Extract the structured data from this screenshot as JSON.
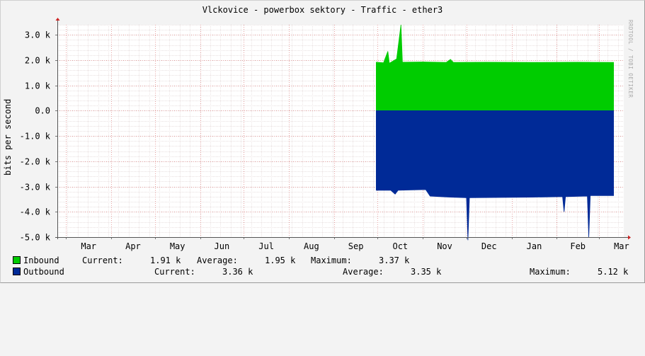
{
  "chart_data": {
    "type": "area",
    "title": "Vlckovice - powerbox sektory - Traffic - ether3",
    "ylabel": "bits per second",
    "watermark": "RRDTOOL / TOBI OETIKER",
    "ylim": [
      -5000,
      3400
    ],
    "yticks": [
      {
        "value": 3000,
        "label": "3.0 k"
      },
      {
        "value": 2000,
        "label": "2.0 k"
      },
      {
        "value": 1000,
        "label": "1.0 k"
      },
      {
        "value": 0,
        "label": "0.0"
      },
      {
        "value": -1000,
        "label": "-1.0 k"
      },
      {
        "value": -2000,
        "label": "-2.0 k"
      },
      {
        "value": -3000,
        "label": "-3.0 k"
      },
      {
        "value": -4000,
        "label": "-4.0 k"
      },
      {
        "value": -5000,
        "label": "-5.0 k"
      }
    ],
    "xlim": [
      "2019-02-23",
      "2020-03-18"
    ],
    "xticks": [
      {
        "date": "2019-03-01",
        "label": "Mar"
      },
      {
        "date": "2019-04-01",
        "label": "Apr"
      },
      {
        "date": "2019-05-01",
        "label": "May"
      },
      {
        "date": "2019-06-01",
        "label": "Jun"
      },
      {
        "date": "2019-07-01",
        "label": "Jul"
      },
      {
        "date": "2019-08-01",
        "label": "Aug"
      },
      {
        "date": "2019-09-01",
        "label": "Sep"
      },
      {
        "date": "2019-10-01",
        "label": "Oct"
      },
      {
        "date": "2019-11-01",
        "label": "Nov"
      },
      {
        "date": "2019-12-01",
        "label": "Dec"
      },
      {
        "date": "2020-01-01",
        "label": "Jan"
      },
      {
        "date": "2020-02-01",
        "label": "Feb"
      },
      {
        "date": "2020-03-01",
        "label": "Mar"
      }
    ],
    "grid": true,
    "legend_placement": "bottom",
    "series": [
      {
        "name": "Inbound",
        "color": "#00cc00",
        "points": [
          {
            "x": "2019-09-30",
            "y": 1920
          },
          {
            "x": "2019-10-05",
            "y": 1900
          },
          {
            "x": "2019-10-08",
            "y": 2350
          },
          {
            "x": "2019-10-09",
            "y": 1880
          },
          {
            "x": "2019-10-14",
            "y": 2050
          },
          {
            "x": "2019-10-17",
            "y": 3400
          },
          {
            "x": "2019-10-18",
            "y": 1920
          },
          {
            "x": "2019-11-01",
            "y": 1930
          },
          {
            "x": "2019-11-17",
            "y": 1910
          },
          {
            "x": "2019-11-20",
            "y": 2030
          },
          {
            "x": "2019-11-22",
            "y": 1910
          },
          {
            "x": "2019-12-15",
            "y": 1920
          },
          {
            "x": "2020-01-15",
            "y": 1910
          },
          {
            "x": "2020-02-15",
            "y": 1920
          },
          {
            "x": "2020-03-11",
            "y": 1910
          }
        ],
        "current": "1.91 k",
        "average": "1.95 k",
        "maximum": "3.37 k"
      },
      {
        "name": "Outbound",
        "color": "#002a97",
        "points": [
          {
            "x": "2019-09-30",
            "y": -3150
          },
          {
            "x": "2019-10-10",
            "y": -3150
          },
          {
            "x": "2019-10-13",
            "y": -3300
          },
          {
            "x": "2019-10-15",
            "y": -3150
          },
          {
            "x": "2019-11-03",
            "y": -3120
          },
          {
            "x": "2019-11-06",
            "y": -3380
          },
          {
            "x": "2019-11-20",
            "y": -3420
          },
          {
            "x": "2019-12-01",
            "y": -3440
          },
          {
            "x": "2019-12-02",
            "y": -5120
          },
          {
            "x": "2019-12-03",
            "y": -3440
          },
          {
            "x": "2020-01-15",
            "y": -3420
          },
          {
            "x": "2020-02-05",
            "y": -3400
          },
          {
            "x": "2020-02-06",
            "y": -4000
          },
          {
            "x": "2020-02-07",
            "y": -3400
          },
          {
            "x": "2020-02-22",
            "y": -3380
          },
          {
            "x": "2020-02-23",
            "y": -5000
          },
          {
            "x": "2020-02-24",
            "y": -3360
          },
          {
            "x": "2020-03-11",
            "y": -3360
          }
        ],
        "current": "3.36 k",
        "average": "3.35 k",
        "maximum": "5.12 k"
      }
    ]
  },
  "legend": {
    "inbound": {
      "name": "Inbound",
      "current_label": "Current:",
      "current": "1.91 k",
      "average_label": "Average:",
      "average": "1.95 k",
      "maximum_label": "Maximum:",
      "maximum": "3.37 k"
    },
    "outbound": {
      "name": "Outbound",
      "current_label": "Current:",
      "current": "3.36 k",
      "average_label": "Average:",
      "average": "3.35 k",
      "maximum_label": "Maximum:",
      "maximum": "5.12 k"
    }
  }
}
